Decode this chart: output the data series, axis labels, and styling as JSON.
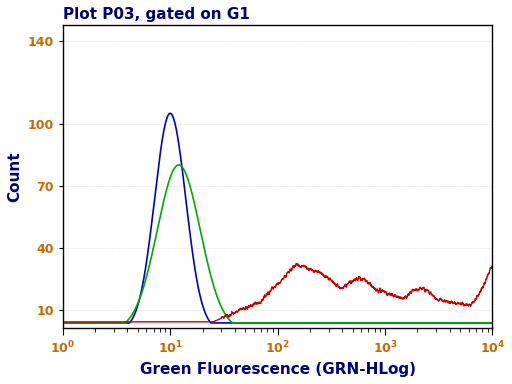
{
  "title": "Plot P03, gated on G1",
  "xlabel": "Green Fluorescence (GRN-HLog)",
  "ylabel": "Count",
  "xlim_log": [
    1.0,
    10000.0
  ],
  "ylim": [
    1,
    148
  ],
  "yticks": [
    10,
    40,
    70,
    100,
    140
  ],
  "xticks": [
    1,
    10,
    100,
    1000,
    10000
  ],
  "blue_color": "#0000cc",
  "green_color": "#00aa00",
  "red_color": "#cc0000",
  "bg_color": "#ffffff",
  "title_color": "#000080",
  "label_color": "#000080",
  "tick_label_color": "#cc6600"
}
